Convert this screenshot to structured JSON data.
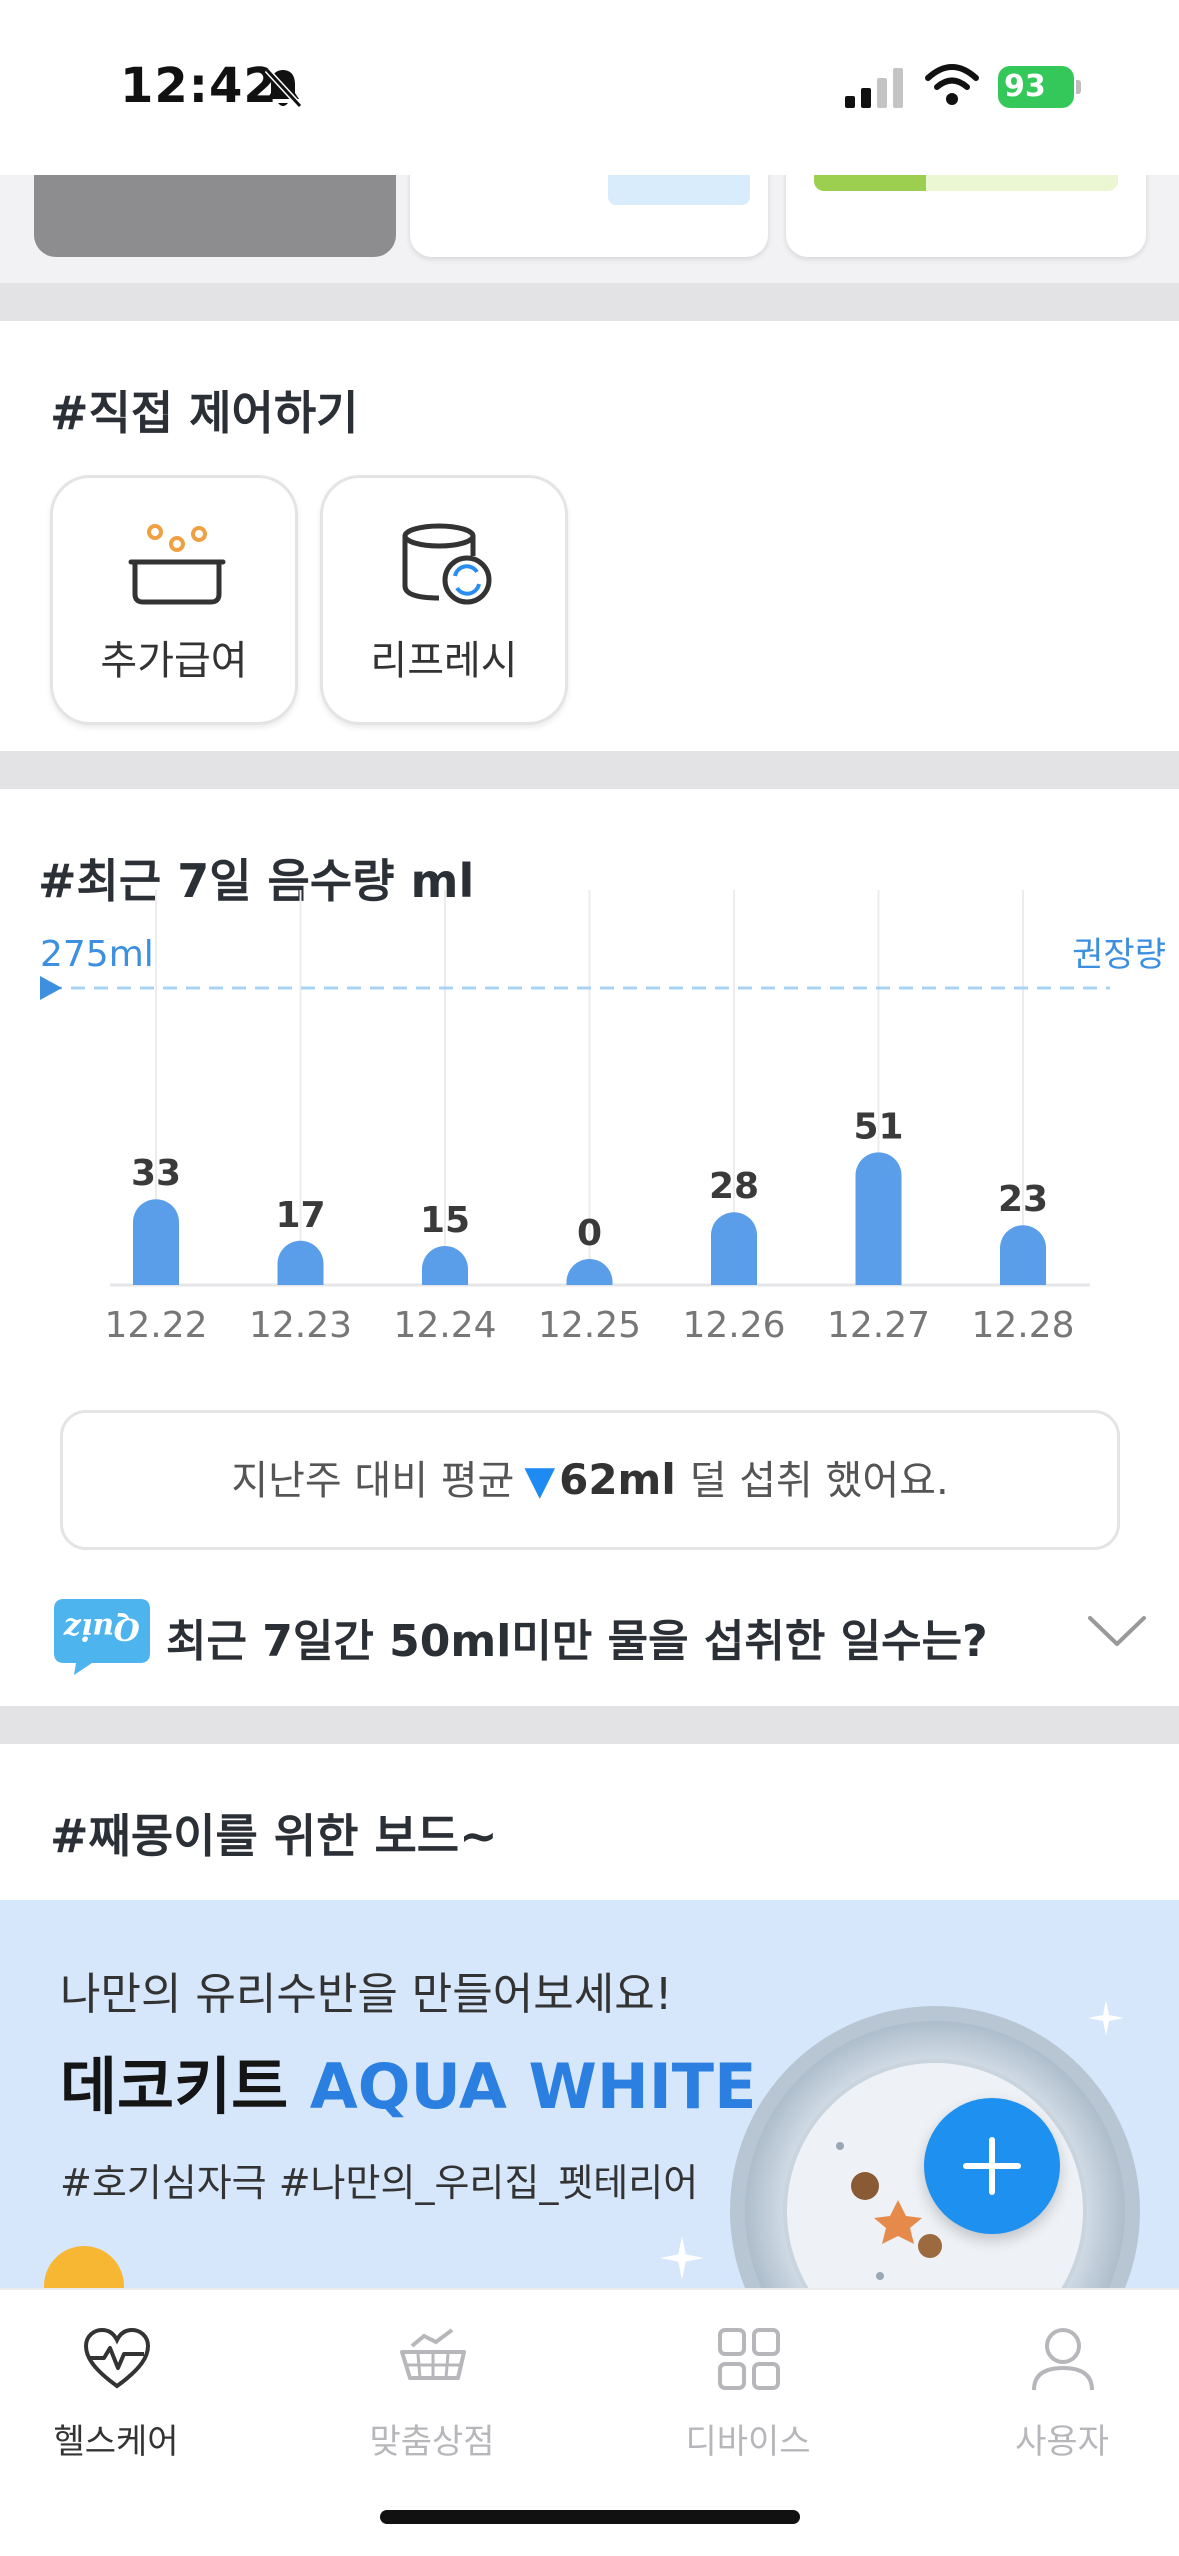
{
  "status_bar": {
    "time": "12:42",
    "battery": "93"
  },
  "control": {
    "title": "#직접 제어하기",
    "buttons": [
      {
        "label": "추가급여",
        "icon": "food-bowl-icon"
      },
      {
        "label": "리프레시",
        "icon": "refresh-tank-icon"
      }
    ]
  },
  "water": {
    "title": "#최근 7일 음수량 ml",
    "compare_prefix": "지난주 대비 평균",
    "compare_amount": "62ml",
    "compare_suffix": "덜 섭취 했어요.",
    "quiz_badge": "Quiz",
    "quiz_question": "최근 7일간 50ml미만 물을 섭취한 일수는?"
  },
  "chart_data": {
    "type": "bar",
    "title": "#최근 7일 음수량 ml",
    "categories": [
      "12.22",
      "12.23",
      "12.24",
      "12.25",
      "12.26",
      "12.27",
      "12.28"
    ],
    "values": [
      33,
      17,
      15,
      0,
      28,
      51,
      23
    ],
    "reference_line": {
      "value": 275,
      "label": "275ml",
      "name": "권장량"
    },
    "colors": {
      "bar": "#5a9eea",
      "reference": "#a9d3f5",
      "label": "#3d8fe0"
    }
  },
  "board": {
    "title": "#째몽이를 위한 보드~",
    "banner_line1": "나만의 유리수반을 만들어보세요!",
    "banner_product": "데코키트",
    "banner_product_accent": "AQUA WHITE",
    "banner_tags": "#호기심자극 #나만의_우리집_펫테리어"
  },
  "tabs": [
    {
      "label": "헬스케어",
      "icon": "heart-pulse-icon",
      "active": true
    },
    {
      "label": "맞춤상점",
      "icon": "shop-cart-icon",
      "active": false
    },
    {
      "label": "디바이스",
      "icon": "grid-icon",
      "active": false
    },
    {
      "label": "사용자",
      "icon": "user-icon",
      "active": false
    }
  ],
  "accent_color": "#1e90f0"
}
